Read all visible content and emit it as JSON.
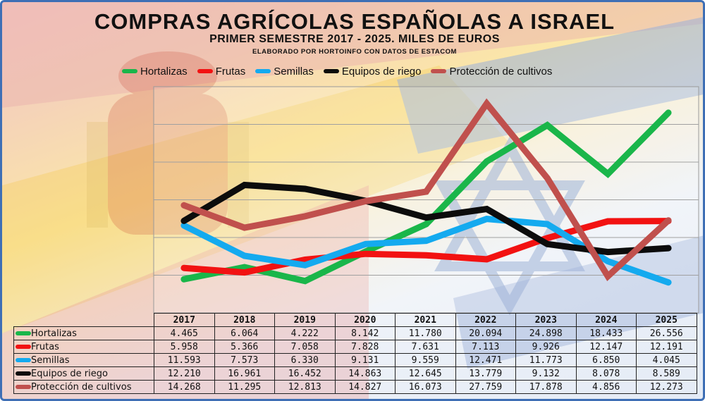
{
  "title": "COMPRAS AGRÍCOLAS ESPAÑOLAS A ISRAEL",
  "subtitle": "PRIMER SEMESTRE 2017 - 2025. MILES DE EUROS",
  "credit": "ELABORADO POR HORTOINFO CON DATOS DE ESTACOM",
  "chart_data": {
    "type": "line",
    "x": [
      "2017",
      "2018",
      "2019",
      "2020",
      "2021",
      "2022",
      "2023",
      "2024",
      "2025"
    ],
    "ylim": [
      0,
      30000
    ],
    "grid": true,
    "legend_position": "top",
    "series": [
      {
        "name": "Hortalizas",
        "color": "#1ab64a",
        "values": [
          4465,
          6064,
          4222,
          8142,
          11780,
          20094,
          24898,
          18433,
          26556
        ],
        "labels": [
          "4.465",
          "6.064",
          "4.222",
          "8.142",
          "11.780",
          "20.094",
          "24.898",
          "18.433",
          "26.556"
        ]
      },
      {
        "name": "Frutas",
        "color": "#f21212",
        "values": [
          5958,
          5366,
          7058,
          7828,
          7631,
          7113,
          9926,
          12147,
          12191
        ],
        "labels": [
          "5.958",
          "5.366",
          "7.058",
          "7.828",
          "7.631",
          "7.113",
          "9.926",
          "12.147",
          "12.191"
        ]
      },
      {
        "name": "Semillas",
        "color": "#14aaef",
        "values": [
          11593,
          7573,
          6330,
          9131,
          9559,
          12471,
          11773,
          6850,
          4045
        ],
        "labels": [
          "11.593",
          "7.573",
          "6.330",
          "9.131",
          "9.559",
          "12.471",
          "11.773",
          "6.850",
          "4.045"
        ]
      },
      {
        "name": "Equipos de riego",
        "color": "#0c0c0c",
        "values": [
          12210,
          16961,
          16452,
          14863,
          12645,
          13779,
          9132,
          8078,
          8589
        ],
        "labels": [
          "12.210",
          "16.961",
          "16.452",
          "14.863",
          "12.645",
          "13.779",
          "9.132",
          "8.078",
          "8.589"
        ]
      },
      {
        "name": "Protección de cultivos",
        "color": "#c0504d",
        "values": [
          14268,
          11295,
          12813,
          14827,
          16073,
          27759,
          17878,
          4856,
          12273
        ],
        "labels": [
          "14.268",
          "11.295",
          "12.813",
          "14.827",
          "16.073",
          "27.759",
          "17.878",
          "4.856",
          "12.273"
        ]
      }
    ]
  }
}
